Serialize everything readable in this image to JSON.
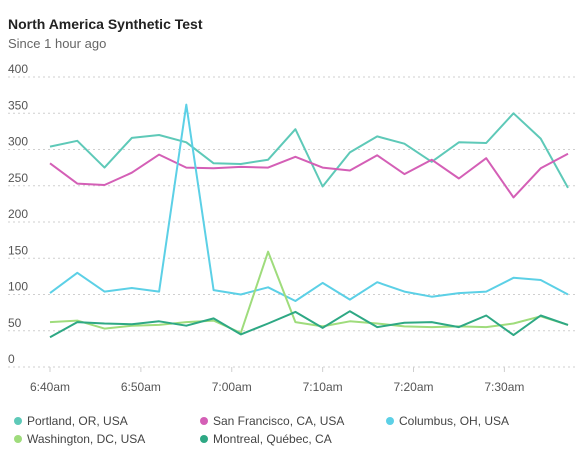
{
  "header": {
    "title": "North America Synthetic Test",
    "subtitle": "Since 1 hour ago"
  },
  "chart_data": {
    "type": "line",
    "x_tick_labels": [
      "6:40am",
      "6:50am",
      "7:00am",
      "7:10am",
      "7:20am",
      "7:30am"
    ],
    "x_minutes_of_tick_labels": [
      0,
      10,
      20,
      30,
      40,
      50
    ],
    "x": [
      0,
      3,
      6,
      9,
      12,
      15,
      18,
      21,
      24,
      27,
      30,
      33,
      36,
      39,
      42,
      45,
      48,
      51,
      54,
      57
    ],
    "ylim": [
      0,
      400
    ],
    "y_ticks": [
      0,
      50,
      100,
      150,
      200,
      250,
      300,
      350,
      400
    ],
    "grid": true,
    "legend_position": "bottom",
    "series": [
      {
        "name": "Portland, OR, USA",
        "color": "#5ec9b8",
        "values": [
          304,
          312,
          275,
          316,
          320,
          310,
          281,
          280,
          286,
          328,
          249,
          296,
          318,
          308,
          283,
          310,
          309,
          350,
          315,
          247
        ]
      },
      {
        "name": "San Francisco, CA, USA",
        "color": "#d45fb6",
        "values": [
          281,
          253,
          251,
          268,
          293,
          275,
          274,
          276,
          275,
          290,
          275,
          271,
          292,
          266,
          286,
          260,
          288,
          234,
          274,
          294
        ]
      },
      {
        "name": "Columbus, OH, USA",
        "color": "#5cd0e6",
        "values": [
          102,
          130,
          104,
          109,
          104,
          362,
          106,
          100,
          110,
          91,
          116,
          93,
          117,
          104,
          97,
          102,
          104,
          123,
          120,
          100
        ]
      },
      {
        "name": "Washington, DC, USA",
        "color": "#9fdc7c",
        "values": [
          62,
          64,
          53,
          57,
          58,
          62,
          64,
          47,
          159,
          62,
          56,
          63,
          60,
          56,
          55,
          56,
          55,
          60,
          70,
          58
        ]
      },
      {
        "name": "Montreal, Québec, CA",
        "color": "#2ea884",
        "values": [
          41,
          62,
          60,
          59,
          63,
          57,
          67,
          45,
          60,
          76,
          54,
          77,
          55,
          61,
          62,
          55,
          71,
          44,
          71,
          58
        ]
      }
    ]
  }
}
